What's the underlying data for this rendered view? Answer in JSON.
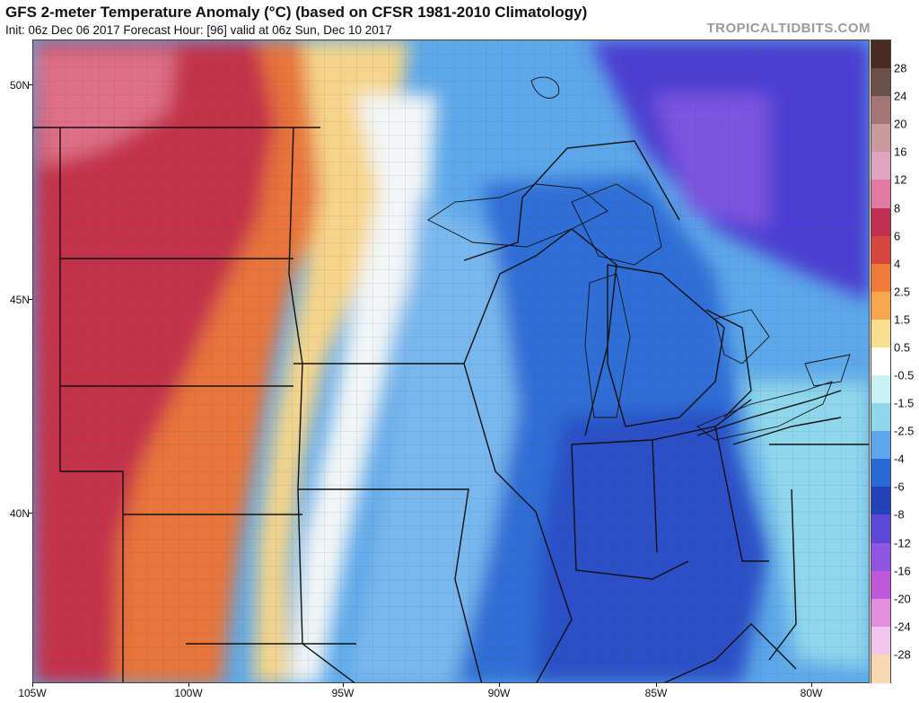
{
  "header": {
    "title": "GFS 2-meter Temperature Anomaly (°C) (based on CFSR 1981-2010 Climatology)",
    "subtitle": "Init: 06z Dec 06 2017   Forecast Hour: [96]   valid at 06z Sun, Dec 10 2017",
    "brand": "TROPICALTIDBITS.COM"
  },
  "map": {
    "latitude_labels": [
      "50N",
      "45N",
      "40N"
    ],
    "longitude_labels": [
      "105W",
      "100W",
      "95W",
      "90W",
      "85W",
      "80W"
    ],
    "anomaly_regions": [
      {
        "region": "northern-plains-west",
        "color": "#c4304a"
      },
      {
        "region": "central-plains",
        "color": "#e8743b"
      },
      {
        "region": "plains-transition",
        "color": "#f6d58a"
      },
      {
        "region": "upper-midwest",
        "color": "#79b8ee"
      },
      {
        "region": "great-lakes",
        "color": "#2f6ed6"
      },
      {
        "region": "ohio-valley",
        "color": "#2a4fc6"
      },
      {
        "region": "ontario-north",
        "color": "#4b3ed2"
      }
    ]
  },
  "colorbar": {
    "labels": [
      "28",
      "24",
      "20",
      "16",
      "12",
      "8",
      "6",
      "4",
      "2.5",
      "1.5",
      "0.5",
      "-0.5",
      "-1.5",
      "-2.5",
      "-4",
      "-6",
      "-8",
      "-12",
      "-16",
      "-20",
      "-24",
      "-28"
    ],
    "colors": [
      "#4a2b22",
      "#6b4f49",
      "#a47672",
      "#c79b9c",
      "#e1a4bf",
      "#e37aa2",
      "#c02f4f",
      "#d8453f",
      "#ef7a3c",
      "#f6a74d",
      "#f8df8f",
      "#ffffff",
      "#c8f0f5",
      "#8fd8ec",
      "#5ca8ea",
      "#2a69d8",
      "#2442b8",
      "#5b47d9",
      "#8f55e3",
      "#c057d6",
      "#e28fe0",
      "#f0c6ee",
      "#f6d8b2"
    ]
  }
}
